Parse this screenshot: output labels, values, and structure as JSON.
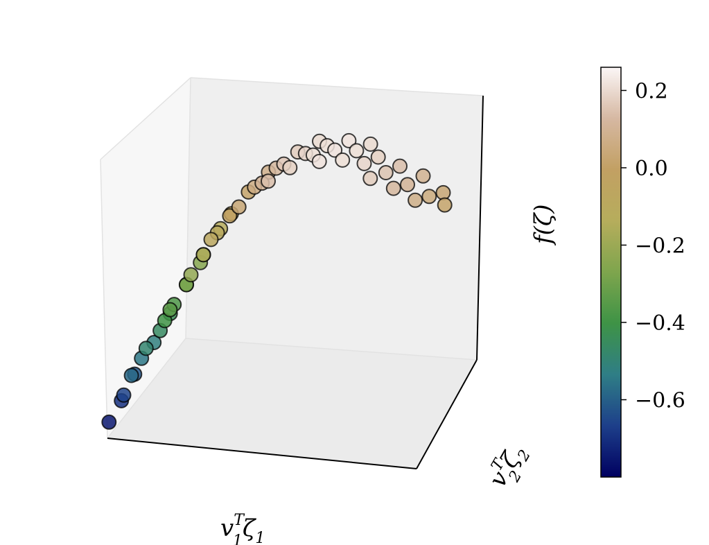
{
  "chart_data": {
    "type": "scatter",
    "projection": "3d",
    "title": "",
    "axes": {
      "x": {
        "label": "v",
        "label_sup": "T",
        "label_sub": "1",
        "label_tail": "ζ",
        "label_tail_sub": "1",
        "ticks_visible": false
      },
      "y": {
        "label": "v",
        "label_sup": "T",
        "label_sub": "2",
        "label_tail": "ζ",
        "label_tail_sub": "2",
        "ticks_visible": false
      },
      "z": {
        "label": "f(ζ)",
        "ticks_visible": false
      }
    },
    "colorbar": {
      "colormap": "gist_earth",
      "range": [
        -0.8,
        0.26
      ],
      "tick_labels": [
        "0.2",
        "0.0",
        "−0.2",
        "−0.4",
        "−0.6"
      ],
      "tick_values": [
        0.2,
        0.0,
        -0.2,
        -0.4,
        -0.6
      ],
      "colors": [
        "#000060",
        "#1d3f8a",
        "#2f7e86",
        "#3e9346",
        "#7ea54d",
        "#b6ad5c",
        "#c2a063",
        "#d6b8a2",
        "#fbf6f6"
      ]
    },
    "marker": {
      "edge_color": "#000000",
      "alpha": 0.55
    },
    "grid": false,
    "points": [
      {
        "x": 0.0,
        "y": 0.02,
        "z": -0.75
      },
      {
        "x": 0.02,
        "y": 0.1,
        "z": -0.7
      },
      {
        "x": 0.04,
        "y": 0.05,
        "z": -0.66
      },
      {
        "x": 0.05,
        "y": 0.15,
        "z": -0.62
      },
      {
        "x": 0.07,
        "y": 0.03,
        "z": -0.58
      },
      {
        "x": 0.08,
        "y": 0.12,
        "z": -0.55
      },
      {
        "x": 0.1,
        "y": 0.2,
        "z": -0.52
      },
      {
        "x": 0.11,
        "y": 0.06,
        "z": -0.49
      },
      {
        "x": 0.13,
        "y": 0.16,
        "z": -0.46
      },
      {
        "x": 0.14,
        "y": 0.25,
        "z": -0.43
      },
      {
        "x": 0.16,
        "y": 0.1,
        "z": -0.4
      },
      {
        "x": 0.17,
        "y": 0.18,
        "z": -0.37
      },
      {
        "x": 0.19,
        "y": 0.05,
        "z": -0.34
      },
      {
        "x": 0.2,
        "y": 0.22,
        "z": -0.31
      },
      {
        "x": 0.22,
        "y": 0.14,
        "z": -0.28
      },
      {
        "x": 0.23,
        "y": 0.28,
        "z": -0.25
      },
      {
        "x": 0.25,
        "y": 0.08,
        "z": -0.22
      },
      {
        "x": 0.26,
        "y": 0.2,
        "z": -0.19
      },
      {
        "x": 0.28,
        "y": 0.12,
        "z": -0.16
      },
      {
        "x": 0.29,
        "y": 0.3,
        "z": -0.13
      },
      {
        "x": 0.31,
        "y": 0.18,
        "z": -0.1
      },
      {
        "x": 0.32,
        "y": 0.06,
        "z": -0.08
      },
      {
        "x": 0.34,
        "y": 0.24,
        "z": -0.05
      },
      {
        "x": 0.36,
        "y": 0.14,
        "z": -0.02
      },
      {
        "x": 0.38,
        "y": 0.3,
        "z": 0.01
      },
      {
        "x": 0.4,
        "y": 0.1,
        "z": 0.03
      },
      {
        "x": 0.42,
        "y": 0.22,
        "z": 0.06
      },
      {
        "x": 0.44,
        "y": 0.32,
        "z": 0.08
      },
      {
        "x": 0.46,
        "y": 0.16,
        "z": 0.1
      },
      {
        "x": 0.48,
        "y": 0.26,
        "z": 0.12
      },
      {
        "x": 0.5,
        "y": 0.08,
        "z": 0.14
      },
      {
        "x": 0.52,
        "y": 0.2,
        "z": 0.16
      },
      {
        "x": 0.54,
        "y": 0.3,
        "z": 0.17
      },
      {
        "x": 0.56,
        "y": 0.12,
        "z": 0.18
      },
      {
        "x": 0.58,
        "y": 0.24,
        "z": 0.19
      },
      {
        "x": 0.6,
        "y": 0.34,
        "z": 0.2
      },
      {
        "x": 0.62,
        "y": 0.18,
        "z": 0.21
      },
      {
        "x": 0.64,
        "y": 0.28,
        "z": 0.21
      },
      {
        "x": 0.66,
        "y": 0.1,
        "z": 0.22
      },
      {
        "x": 0.68,
        "y": 0.22,
        "z": 0.22
      },
      {
        "x": 0.7,
        "y": 0.32,
        "z": 0.22
      },
      {
        "x": 0.72,
        "y": 0.16,
        "z": 0.21
      },
      {
        "x": 0.74,
        "y": 0.26,
        "z": 0.21
      },
      {
        "x": 0.76,
        "y": 0.36,
        "z": 0.2
      },
      {
        "x": 0.78,
        "y": 0.2,
        "z": 0.19
      },
      {
        "x": 0.8,
        "y": 0.3,
        "z": 0.18
      },
      {
        "x": 0.82,
        "y": 0.12,
        "z": 0.17
      },
      {
        "x": 0.84,
        "y": 0.24,
        "z": 0.15
      },
      {
        "x": 0.86,
        "y": 0.34,
        "z": 0.14
      },
      {
        "x": 0.88,
        "y": 0.18,
        "z": 0.12
      },
      {
        "x": 0.9,
        "y": 0.28,
        "z": 0.1
      },
      {
        "x": 0.92,
        "y": 0.4,
        "z": 0.09
      },
      {
        "x": 0.94,
        "y": 0.22,
        "z": 0.07
      },
      {
        "x": 0.96,
        "y": 0.32,
        "z": 0.05
      },
      {
        "x": 0.98,
        "y": 0.42,
        "z": 0.03
      },
      {
        "x": 1.0,
        "y": 0.36,
        "z": 0.01
      }
    ]
  }
}
